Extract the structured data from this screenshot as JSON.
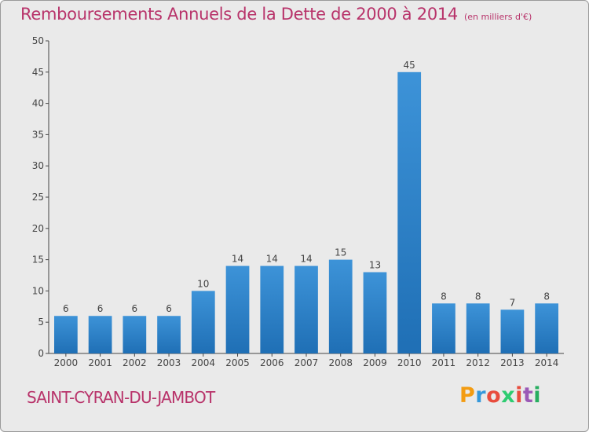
{
  "header": {
    "title": "Remboursements Annuels de la Dette de 2000 à 2014",
    "unit": "(en milliers d'€)"
  },
  "footer": {
    "commune": "SAINT-CYRAN-DU-JAMBOT",
    "logo_text": "Proxiti",
    "logo_colors": [
      "#f39c12",
      "#3498db",
      "#e84c3d",
      "#2ecc71",
      "#e84c3d",
      "#9b59b6",
      "#27ae60"
    ]
  },
  "chart_data": {
    "type": "bar",
    "title": "Remboursements Annuels de la Dette de 2000 à 2014",
    "subtitle": "(en milliers d'€)",
    "xlabel": "",
    "ylabel": "",
    "categories": [
      "2000",
      "2001",
      "2002",
      "2003",
      "2004",
      "2005",
      "2006",
      "2007",
      "2008",
      "2009",
      "2010",
      "2011",
      "2012",
      "2013",
      "2014"
    ],
    "values": [
      6,
      6,
      6,
      6,
      10,
      14,
      14,
      14,
      15,
      13,
      45,
      8,
      8,
      7,
      8
    ],
    "ylim": [
      0,
      50
    ],
    "yticks": [
      0,
      5,
      10,
      15,
      20,
      25,
      30,
      35,
      40,
      45,
      50
    ],
    "grid": false,
    "legend": "none",
    "bar_color": "#3d93d8",
    "bar_color_dark": "#1f6fb5"
  }
}
